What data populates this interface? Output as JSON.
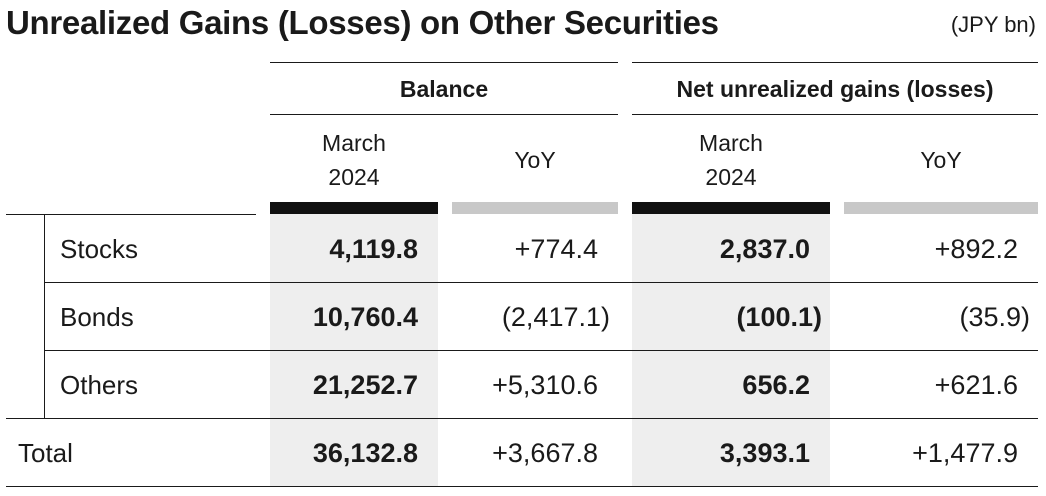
{
  "title": "Unrealized Gains (Losses) on Other Securities",
  "unit": "(JPY bn)",
  "groups": [
    {
      "label": "Balance",
      "sub": [
        {
          "line1": "March",
          "line2": "2024"
        },
        {
          "line1": "YoY",
          "line2": ""
        }
      ]
    },
    {
      "label": "Net unrealized gains (losses)",
      "sub": [
        {
          "line1": "March",
          "line2": "2024"
        },
        {
          "line1": "YoY",
          "line2": ""
        }
      ]
    }
  ],
  "rows": [
    {
      "label": "Stocks",
      "cells": [
        "4,119.8",
        "+774.4",
        "2,837.0",
        "+892.2"
      ]
    },
    {
      "label": "Bonds",
      "cells": [
        "10,760.4",
        "(2,417.1)",
        "(100.1)",
        "(35.9)"
      ]
    },
    {
      "label": "Others",
      "cells": [
        "21,252.7",
        "+5,310.6",
        "656.2",
        "+621.6"
      ]
    },
    {
      "label": "Total",
      "cells": [
        "36,132.8",
        "+3,667.8",
        "3,393.1",
        "+1,477.9"
      ]
    }
  ]
}
